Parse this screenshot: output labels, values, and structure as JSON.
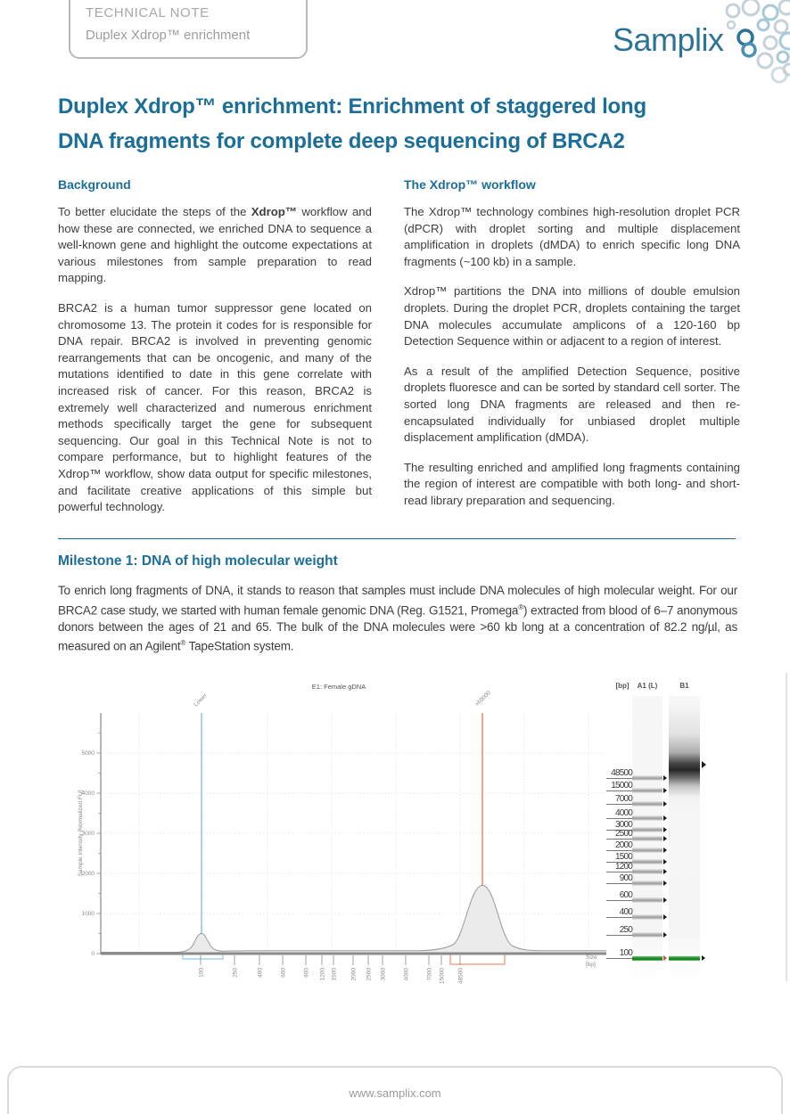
{
  "brand": {
    "logo_blue": "#2d7396",
    "accent_blue": "#1b6e98"
  },
  "header": {
    "doc_type": "TECHNICAL NOTE",
    "doc_subtitle": "Duplex Xdrop™ enrichment",
    "logo_text": "Samplix"
  },
  "title_lines": [
    "Duplex Xdrop™ enrichment: Enrichment of staggered long",
    "DNA fragments for complete deep sequencing of BRCA2"
  ],
  "background": {
    "heading": "Background",
    "p1": "To better elucidate the steps of the **Xdrop™** workflow and how these are connected, we enriched DNA to sequence a well-known gene and highlight the outcome expectations at various milestones from sample preparation to read mapping.",
    "p2": "BRCA2 is a human tumor suppressor gene located on chromosome 13. The protein it codes for is responsible for DNA repair. BRCA2 is involved in preventing genomic rearrangements that can be oncogenic, and many of the mutations identified to date in this gene correlate with increased risk of cancer. For this reason, BRCA2 is extremely well characterized and numerous enrichment methods specifically target the gene for subsequent sequencing. Our goal in this Technical Note is not to compare performance, but to highlight features of the Xdrop™ workflow, show data output for specific milestones, and facilitate creative applications of this simple but powerful technology."
  },
  "workflow": {
    "heading": "The Xdrop™ workflow",
    "p1": "The Xdrop™ technology combines high-resolution droplet PCR (dPCR) with droplet sorting and multiple displacement amplification in droplets (dMDA) to enrich specific long DNA fragments (~100 kb) in a sample.",
    "p2": "Xdrop™ partitions the DNA into millions of double emulsion droplets. During the droplet PCR, droplets containing the target DNA molecules accumulate amplicons of a 120-160 bp Detection Sequence within or adjacent to a region of interest.",
    "p3": "As a result of the amplified Detection Sequence, positive droplets fluoresce and can be sorted by standard cell sorter. The sorted long DNA fragments are released and then re-encapsulated individually for unbiased droplet multiple displacement amplification (dMDA).",
    "p4": "The resulting enriched and amplified long fragments containing the region of interest are compatible with both long- and short-read library preparation and sequencing."
  },
  "milestone": {
    "heading": "Milestone 1: DNA of high molecular weight",
    "body": "To enrich long fragments of DNA, it stands to reason that samples must include DNA molecules of high molecular weight. For our BRCA2 case study, we started with human female genomic DNA (Reg. G1521, Promega®) extracted from blood of 6–7 anonymous donors between the ages of 21 and 65. The bulk of the DNA molecules were >60 kb long at a concentration of 82.2 ng/µl, as measured on an Agilent® TapeStation system."
  },
  "chart_data": {
    "type": "area",
    "title": "E1: Female gDNA",
    "xlabel": "Size [bp]",
    "ylabel": "Sample Intensity [Normalized FU]",
    "xscale": "log-migration",
    "xticks": [
      "100",
      "250",
      "400",
      "600",
      "900",
      "1200",
      "1500",
      "2000",
      "2500",
      "3000",
      "4000",
      "7000",
      "15000",
      "48500"
    ],
    "yticks": [
      0,
      1000,
      2000,
      3000,
      4000,
      5000
    ],
    "ylim": [
      0,
      5600
    ],
    "grid": true,
    "markers": [
      {
        "label": "Lower",
        "x": "100",
        "color": "#a9d2f2"
      },
      {
        "label": ">60000",
        "x": "60000",
        "color": "#f4a68c"
      }
    ],
    "peaks": [
      {
        "size_bp": "100",
        "intensity_fu": 500,
        "note": "lower marker peak"
      },
      {
        "size_bp": "~60000",
        "intensity_fu": 1700,
        "note": "high molecular weight gDNA peak"
      }
    ]
  },
  "gel": {
    "units_label": "[bp]",
    "lane1_label": "A1 (L)",
    "lane2_label": "B1",
    "ladder_sizes": [
      "48500",
      "15000",
      "7000",
      "4000",
      "3000",
      "2500",
      "2000",
      "1500",
      "1200",
      "900",
      "600",
      "400",
      "250",
      "100"
    ],
    "sample_band": "high molecular weight smear above 48500 bp",
    "marker_band_color": "#1f9b2c"
  },
  "footer": {
    "url": "www.samplix.com"
  }
}
